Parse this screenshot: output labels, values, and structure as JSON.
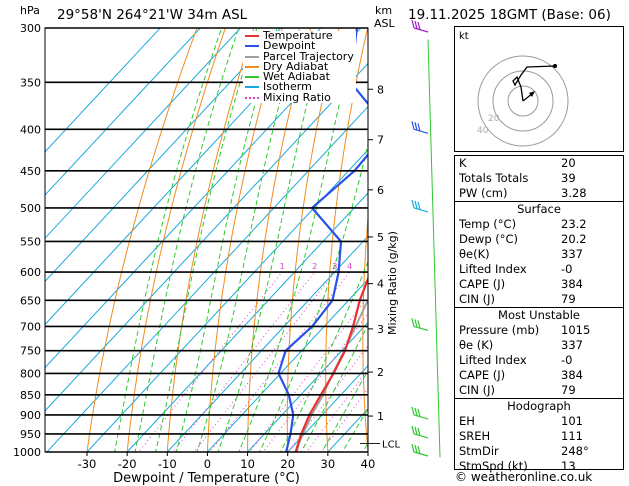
{
  "header": {
    "pressure_unit": "hPa",
    "location": "29°58'N  264°21'W  34m  ASL",
    "km_label": "km",
    "asl_label": "ASL",
    "datetime": "19.11.2025  18GMT  (Base: 06)"
  },
  "legend": [
    {
      "label": "Temperature",
      "color": "#e8322f",
      "style": "solid"
    },
    {
      "label": "Dewpoint",
      "color": "#2a52e8",
      "style": "solid"
    },
    {
      "label": "Parcel Trajectory",
      "color": "#a0a0a0",
      "style": "solid"
    },
    {
      "label": "Dry Adiabat",
      "color": "#f08c1e",
      "style": "solid"
    },
    {
      "label": "Wet Adiabat",
      "color": "#2ec82e",
      "style": "solid"
    },
    {
      "label": "Isotherm",
      "color": "#19aadc",
      "style": "solid"
    },
    {
      "label": "Mixing Ratio",
      "color": "#e040c8",
      "style": "dotted"
    }
  ],
  "colors": {
    "temperature": "#e8322f",
    "dewpoint": "#2a52e8",
    "parcel": "#a0a0a0",
    "dry_adiabat": "#f08c1e",
    "wet_adiabat": "#2ec82e",
    "isotherm": "#19aadc",
    "mixing_ratio": "#e040c8"
  },
  "chart_data": {
    "type": "line",
    "title": "Skew-T log-P diagram",
    "xlabel": "Dewpoint / Temperature (°C)",
    "ylabel": "hPa",
    "xlim": [
      -35,
      40
    ],
    "x_ticks": [
      -30,
      -20,
      -10,
      0,
      10,
      20,
      30,
      40
    ],
    "pressure_levels": [
      300,
      350,
      400,
      450,
      500,
      550,
      600,
      650,
      700,
      750,
      800,
      850,
      900,
      950,
      1000
    ],
    "height_km_ticks": [
      {
        "km": "1",
        "p": 903
      },
      {
        "km": "2",
        "p": 797
      },
      {
        "km": "3",
        "p": 705
      },
      {
        "km": "4",
        "p": 620
      },
      {
        "km": "5",
        "p": 543
      },
      {
        "km": "6",
        "p": 475
      },
      {
        "km": "7",
        "p": 412
      },
      {
        "km": "8",
        "p": 357
      }
    ],
    "lcl": {
      "label": "LCL",
      "p": 976
    },
    "mixing_ratio_axis_label": "Mixing Ratio (g/kg)",
    "mixing_ratio_labels": [
      "1",
      "2",
      "3",
      "4",
      "8",
      "10",
      "15",
      "20",
      "25"
    ],
    "mixing_ratio_values": [
      1,
      2,
      3,
      4,
      8,
      10,
      15,
      20,
      25
    ],
    "mixing_ratio_label_p": 600,
    "series": [
      {
        "name": "Temperature",
        "points": [
          [
            1015,
            23.2
          ],
          [
            1000,
            22.0
          ],
          [
            950,
            19.2
          ],
          [
            900,
            16.8
          ],
          [
            850,
            15.0
          ],
          [
            800,
            13.2
          ],
          [
            750,
            10.8
          ],
          [
            700,
            7.2
          ],
          [
            650,
            2.8
          ],
          [
            600,
            -1.0
          ],
          [
            550,
            -5.0
          ],
          [
            500,
            -8.5
          ],
          [
            450,
            -14.8
          ],
          [
            400,
            -23.0
          ],
          [
            350,
            -31.0
          ],
          [
            300,
            -40.5
          ]
        ]
      },
      {
        "name": "Dewpoint",
        "points": [
          [
            1015,
            20.2
          ],
          [
            1000,
            19.6
          ],
          [
            950,
            16.5
          ],
          [
            900,
            12.8
          ],
          [
            850,
            7.0
          ],
          [
            800,
            -0.5
          ],
          [
            750,
            -4.0
          ],
          [
            700,
            -3.0
          ],
          [
            650,
            -4.0
          ],
          [
            600,
            -9.0
          ],
          [
            550,
            -15.5
          ],
          [
            500,
            -30.5
          ],
          [
            450,
            -28.5
          ],
          [
            400,
            -29.5
          ],
          [
            350,
            -50.0
          ],
          [
            300,
            -61.0
          ]
        ]
      },
      {
        "name": "Parcel Trajectory",
        "points": [
          [
            1015,
            23.2
          ],
          [
            976,
            20.8
          ],
          [
            900,
            17.4
          ],
          [
            850,
            15.6
          ],
          [
            800,
            13.0
          ],
          [
            750,
            10.6
          ],
          [
            700,
            7.8
          ],
          [
            650,
            4.8
          ],
          [
            600,
            1.4
          ],
          [
            550,
            -2.6
          ],
          [
            500,
            -7.2
          ],
          [
            450,
            -12.5
          ],
          [
            400,
            -18.8
          ],
          [
            350,
            -26.5
          ],
          [
            300,
            -35.5
          ]
        ]
      }
    ],
    "wind_barbs": [
      {
        "p": 300,
        "color": "#a020c8"
      },
      {
        "p": 400,
        "color": "#2a52e8"
      },
      {
        "p": 500,
        "color": "#19aadc"
      },
      {
        "p": 700,
        "color": "#2ec82e"
      },
      {
        "p": 900,
        "color": "#2ec82e"
      },
      {
        "p": 950,
        "color": "#2ec82e"
      },
      {
        "p": 1000,
        "color": "#2ec82e"
      }
    ]
  },
  "hodograph": {
    "unit": "kt",
    "ring_labels": [
      "20",
      "40"
    ]
  },
  "indices": {
    "rows": [
      {
        "label": "K",
        "value": "20"
      },
      {
        "label": "Totals Totals",
        "value": "39"
      },
      {
        "label": "PW (cm)",
        "value": "3.28"
      }
    ],
    "surface": {
      "title": "Surface",
      "rows": [
        {
          "label": "Temp (°C)",
          "value": "23.2"
        },
        {
          "label": "Dewp (°C)",
          "value": "20.2"
        },
        {
          "label": "θe(K)",
          "value": "337"
        },
        {
          "label": "Lifted Index",
          "value": "-0"
        },
        {
          "label": "CAPE (J)",
          "value": "384"
        },
        {
          "label": "CIN (J)",
          "value": "79"
        }
      ]
    },
    "most_unstable": {
      "title": "Most Unstable",
      "rows": [
        {
          "label": "Pressure (mb)",
          "value": "1015"
        },
        {
          "label": "θe (K)",
          "value": "337"
        },
        {
          "label": "Lifted Index",
          "value": "-0"
        },
        {
          "label": "CAPE (J)",
          "value": "384"
        },
        {
          "label": "CIN (J)",
          "value": "79"
        }
      ]
    },
    "hodograph": {
      "title": "Hodograph",
      "rows": [
        {
          "label": "EH",
          "value": "101"
        },
        {
          "label": "SREH",
          "value": "111"
        },
        {
          "label": "StmDir",
          "value": "248°"
        },
        {
          "label": "StmSpd (kt)",
          "value": "13"
        }
      ]
    }
  },
  "footer": {
    "copyright": "© weatheronline.co.uk"
  }
}
